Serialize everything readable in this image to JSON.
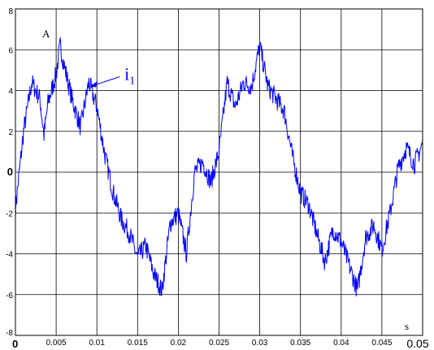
{
  "chart_data": {
    "type": "line",
    "ylabel": "A",
    "xlabel": "s",
    "xlim": [
      0,
      0.05
    ],
    "ylim": [
      -8,
      8
    ],
    "grid": true,
    "x_ticks": [
      0,
      0.005,
      0.01,
      0.015,
      0.02,
      0.025,
      0.03,
      0.035,
      0.04,
      0.045,
      0.05
    ],
    "x_tick_labels": [
      "0",
      "0.005",
      "0.01",
      "0.015",
      "0.02",
      "0.025",
      "0.03",
      "0.035",
      "0.04",
      "0.045",
      "0.05"
    ],
    "y_ticks": [
      -8,
      -6,
      -4,
      -2,
      0,
      2,
      4,
      6,
      8
    ],
    "y_tick_labels": [
      "-8",
      "-6",
      "-4",
      "-2",
      "0",
      "2",
      "4",
      "6",
      "8"
    ],
    "annotation": {
      "text": "i",
      "subscript": "1",
      "points_to": {
        "x": 0.0092,
        "y": 4.2
      },
      "color": "#0000ff"
    },
    "series": [
      {
        "color": "#0000ff",
        "points": [
          [
            0,
            -1.8
          ],
          [
            0.001,
            2.0
          ],
          [
            0.002,
            4.4
          ],
          [
            0.003,
            3.6
          ],
          [
            0.0035,
            1.8
          ],
          [
            0.004,
            3.4
          ],
          [
            0.005,
            4.8
          ],
          [
            0.0055,
            6.2
          ],
          [
            0.006,
            5.2
          ],
          [
            0.007,
            3.5
          ],
          [
            0.008,
            2.2
          ],
          [
            0.009,
            4.4
          ],
          [
            0.01,
            3.2
          ],
          [
            0.011,
            0.8
          ],
          [
            0.012,
            -1.0
          ],
          [
            0.013,
            -2.3
          ],
          [
            0.014,
            -3.0
          ],
          [
            0.015,
            -4.2
          ],
          [
            0.016,
            -3.6
          ],
          [
            0.017,
            -5.0
          ],
          [
            0.018,
            -5.8
          ],
          [
            0.019,
            -2.5
          ],
          [
            0.02,
            -2.0
          ],
          [
            0.021,
            -4.0
          ],
          [
            0.022,
            0
          ],
          [
            0.023,
            0.5
          ],
          [
            0.024,
            -0.5
          ],
          [
            0.025,
            1.0
          ],
          [
            0.026,
            4.4
          ],
          [
            0.027,
            3.2
          ],
          [
            0.028,
            4.4
          ],
          [
            0.029,
            4.2
          ],
          [
            0.03,
            6.2
          ],
          [
            0.031,
            4.2
          ],
          [
            0.032,
            3.6
          ],
          [
            0.033,
            3.0
          ],
          [
            0.034,
            0.8
          ],
          [
            0.035,
            -1.0
          ],
          [
            0.036,
            -1.6
          ],
          [
            0.037,
            -3.0
          ],
          [
            0.038,
            -4.4
          ],
          [
            0.039,
            -2.8
          ],
          [
            0.04,
            -3.4
          ],
          [
            0.041,
            -4.6
          ],
          [
            0.042,
            -5.8
          ],
          [
            0.043,
            -3.2
          ],
          [
            0.044,
            -2.6
          ],
          [
            0.045,
            -3.8
          ],
          [
            0.046,
            -2.0
          ],
          [
            0.047,
            0.2
          ],
          [
            0.048,
            1.2
          ],
          [
            0.049,
            0.4
          ],
          [
            0.05,
            1.4
          ]
        ]
      }
    ]
  }
}
